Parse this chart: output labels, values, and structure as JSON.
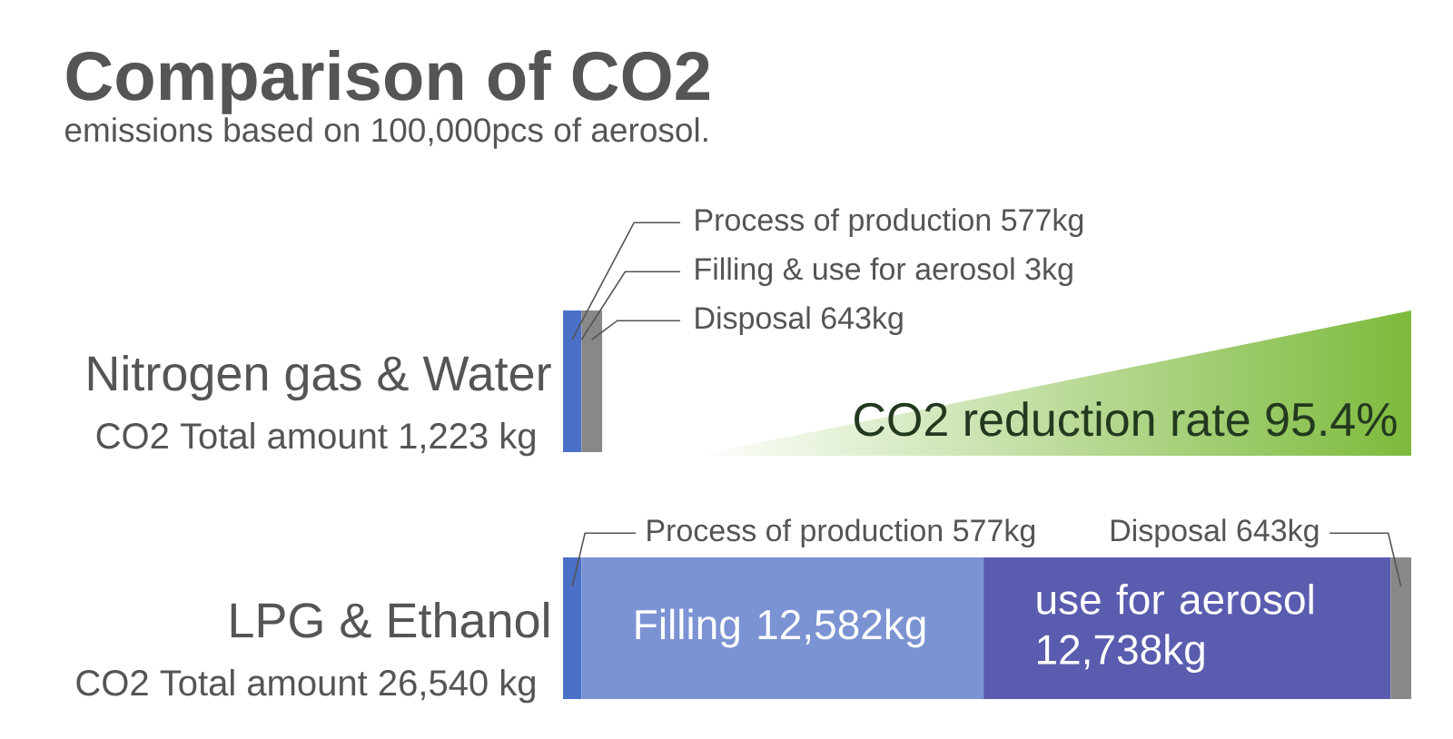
{
  "chart_data": {
    "type": "bar",
    "orientation": "horizontal",
    "stacked": true,
    "title": "Comparison of CO2",
    "subtitle": "emissions based on 100,000pcs of aerosol.",
    "categories": [
      "Nitrogen gas & Water",
      "LPG & Ethanol"
    ],
    "series": [
      {
        "color": "#4a70c8",
        "values": [
          577,
          577
        ],
        "value_labels": [
          "Process of production 577kg",
          "Process of production 577kg"
        ]
      },
      {
        "color": "#7b93d3",
        "values": [
          3,
          12582
        ],
        "value_labels": [
          "Filling & use for aerosol 3kg",
          "Filling 12,582kg"
        ]
      },
      {
        "color": "#5a5caf",
        "values": [
          null,
          12738
        ],
        "value_labels": [
          null,
          "use for aerosol 12,738kg"
        ]
      },
      {
        "color": "#888888",
        "values": [
          643,
          643
        ],
        "value_labels": [
          "Disposal 643kg",
          "Disposal 643kg"
        ]
      }
    ],
    "totals": [
      "CO2 Total amount 1,223 kg",
      "CO2 Total amount 26,540 kg"
    ],
    "annotations": [
      "CO2 reduction rate 95.4%"
    ]
  }
}
